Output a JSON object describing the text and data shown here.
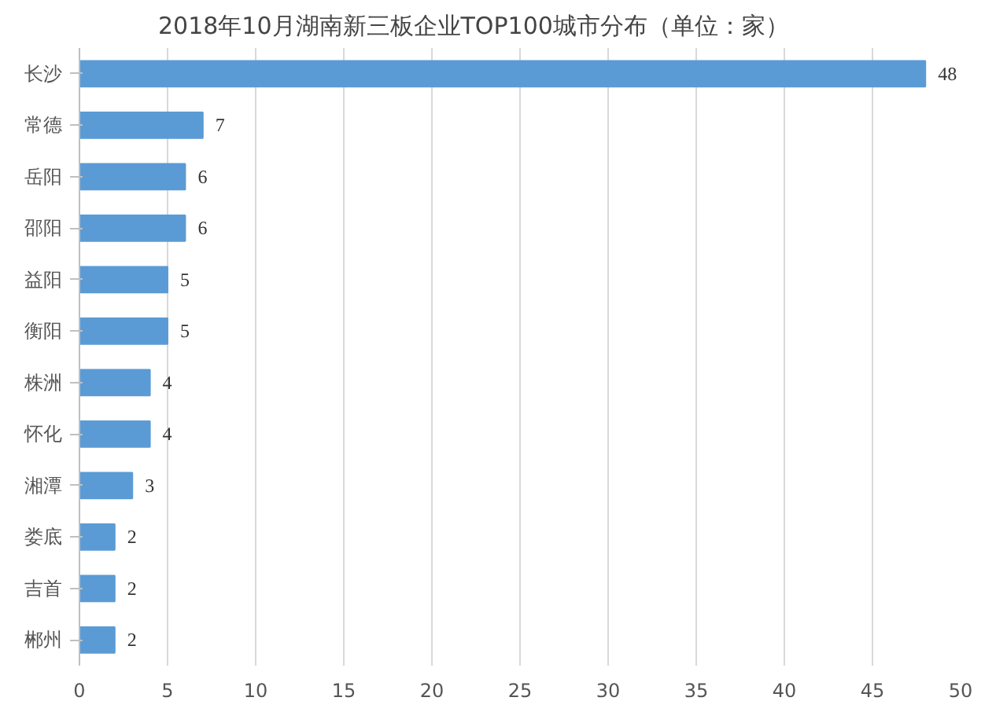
{
  "chart_data": {
    "type": "bar",
    "orientation": "horizontal",
    "title": "2018年10月湖南新三板企业TOP100城市分布（单位：家）",
    "categories": [
      "长沙",
      "常德",
      "岳阳",
      "邵阳",
      "益阳",
      "衡阳",
      "株洲",
      "怀化",
      "湘潭",
      "娄底",
      "吉首",
      "郴州"
    ],
    "values": [
      48,
      7,
      6,
      6,
      5,
      5,
      4,
      4,
      3,
      2,
      2,
      2
    ],
    "color": "#5b9bd5",
    "xlim": [
      0,
      50
    ],
    "xticks": [
      0,
      5,
      10,
      15,
      20,
      25,
      30,
      35,
      40,
      45,
      50
    ],
    "grid": "x",
    "data_labels": true
  }
}
